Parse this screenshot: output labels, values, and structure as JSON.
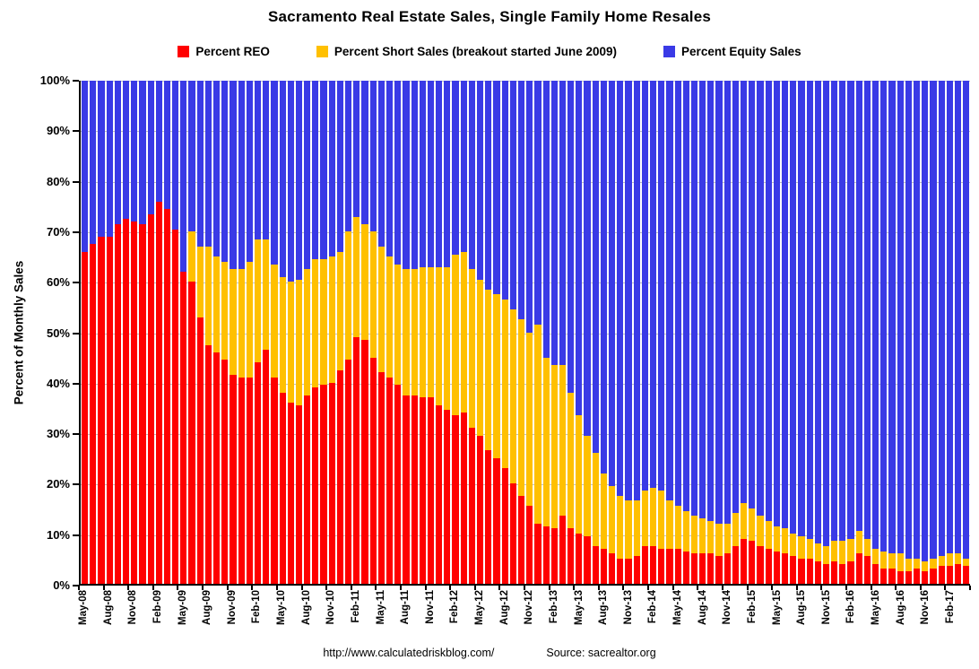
{
  "title": "Sacramento Real Estate Sales, Single Family Home Resales",
  "legend": [
    {
      "label": "Percent REO",
      "color": "#FF0000"
    },
    {
      "label": "Percent Short Sales (breakout started June 2009)",
      "color": "#FFC000"
    },
    {
      "label": "Percent Equity Sales",
      "color": "#3A3AE6"
    }
  ],
  "y_axis": {
    "title": "Percent of Monthly Sales",
    "ticks": [
      "0%",
      "10%",
      "20%",
      "30%",
      "40%",
      "50%",
      "60%",
      "70%",
      "80%",
      "90%",
      "100%"
    ]
  },
  "x_axis": {
    "label_every": 3
  },
  "footer": {
    "url": "http://www.calculatedriskblog.com/",
    "source": "Source: sacrealtor.org"
  },
  "colors": {
    "reo": "#FF0000",
    "short_sales": "#FFC000",
    "equity": "#3A3AE6",
    "gridline": "#C0C0C0"
  },
  "chart_data": {
    "type": "bar",
    "stacked": true,
    "percent_total": 100,
    "title": "Sacramento Real Estate Sales, Single Family Home Resales",
    "ylabel": "Percent of Monthly Sales",
    "ylim": [
      0,
      100
    ],
    "grid": true,
    "legend_position": "top",
    "categories": [
      "May-08",
      "Jun-08",
      "Jul-08",
      "Aug-08",
      "Sep-08",
      "Oct-08",
      "Nov-08",
      "Dec-08",
      "Jan-09",
      "Feb-09",
      "Mar-09",
      "Apr-09",
      "May-09",
      "Jun-09",
      "Jul-09",
      "Aug-09",
      "Sep-09",
      "Oct-09",
      "Nov-09",
      "Dec-09",
      "Jan-10",
      "Feb-10",
      "Mar-10",
      "Apr-10",
      "May-10",
      "Jun-10",
      "Jul-10",
      "Aug-10",
      "Sep-10",
      "Oct-10",
      "Nov-10",
      "Dec-10",
      "Jan-11",
      "Feb-11",
      "Mar-11",
      "Apr-11",
      "May-11",
      "Jun-11",
      "Jul-11",
      "Aug-11",
      "Sep-11",
      "Oct-11",
      "Nov-11",
      "Dec-11",
      "Jan-12",
      "Feb-12",
      "Mar-12",
      "Apr-12",
      "May-12",
      "Jun-12",
      "Jul-12",
      "Aug-12",
      "Sep-12",
      "Oct-12",
      "Nov-12",
      "Dec-12",
      "Jan-13",
      "Feb-13",
      "Mar-13",
      "Apr-13",
      "May-13",
      "Jun-13",
      "Jul-13",
      "Aug-13",
      "Sep-13",
      "Oct-13",
      "Nov-13",
      "Dec-13",
      "Jan-14",
      "Feb-14",
      "Mar-14",
      "Apr-14",
      "May-14",
      "Jun-14",
      "Jul-14",
      "Aug-14",
      "Sep-14",
      "Oct-14",
      "Nov-14",
      "Dec-14",
      "Jan-15",
      "Feb-15",
      "Mar-15",
      "Apr-15",
      "May-15",
      "Jun-15",
      "Jul-15",
      "Aug-15",
      "Sep-15",
      "Oct-15",
      "Nov-15",
      "Dec-15",
      "Jan-16",
      "Feb-16",
      "Mar-16",
      "Apr-16",
      "May-16",
      "Jun-16",
      "Jul-16",
      "Aug-16",
      "Sep-16",
      "Oct-16",
      "Nov-16",
      "Dec-16",
      "Jan-17",
      "Feb-17",
      "Mar-17",
      "Apr-17"
    ],
    "series": [
      {
        "name": "Percent REO",
        "color": "#FF0000",
        "values": [
          66,
          67.5,
          69,
          69,
          71.5,
          72.5,
          72,
          71.5,
          73.5,
          76,
          74.5,
          70.5,
          62,
          60,
          53,
          47.5,
          46,
          44.5,
          41.5,
          41,
          41,
          44,
          46.5,
          41,
          38,
          36,
          35.5,
          37.5,
          39,
          39.5,
          40,
          42.5,
          44.5,
          49,
          48.5,
          45,
          42,
          41,
          39.5,
          37.5,
          37.5,
          37,
          37,
          35.5,
          34.5,
          33.5,
          34,
          31,
          29.5,
          26.5,
          25,
          23,
          20,
          17.5,
          15.5,
          12,
          11.5,
          11,
          13.5,
          11,
          10,
          9.5,
          7.5,
          7,
          6,
          5,
          5,
          5.5,
          7.5,
          7.5,
          7,
          7,
          7,
          6.5,
          6,
          6,
          6,
          5.5,
          6,
          7.5,
          9,
          8.5,
          7.5,
          7,
          6.5,
          6,
          5.5,
          5,
          5,
          4.5,
          4,
          4.5,
          4,
          4.5,
          6,
          5.5,
          4,
          3,
          3,
          2.5,
          2.5,
          3,
          2.5,
          3,
          3.5,
          3.5,
          4,
          3.5
        ]
      },
      {
        "name": "Percent Short Sales (breakout started June 2009)",
        "color": "#FFC000",
        "values": [
          0,
          0,
          0,
          0,
          0,
          0,
          0,
          0,
          0,
          0,
          0,
          0,
          0,
          10,
          14,
          19.5,
          19,
          19.5,
          21,
          21.5,
          23,
          24.5,
          22,
          22.5,
          23,
          24,
          25,
          25,
          25.5,
          25,
          25,
          23.5,
          25.5,
          24,
          23,
          25,
          25,
          24,
          24,
          25,
          25,
          26,
          26,
          27.5,
          28.5,
          32,
          32,
          31.5,
          31,
          32,
          32.5,
          33.5,
          34.5,
          35,
          34.5,
          39.5,
          33.5,
          32.5,
          30,
          27,
          23.5,
          20,
          18.5,
          15,
          13.5,
          12.5,
          11.5,
          11,
          11,
          11.5,
          11.5,
          9.5,
          8.5,
          8,
          7.5,
          7,
          6.5,
          6.5,
          6,
          6.5,
          7,
          6.5,
          6,
          5.5,
          5,
          5,
          4.5,
          4.5,
          4,
          3.5,
          3.5,
          4,
          4.5,
          4.5,
          4.5,
          3.5,
          3,
          3.5,
          3,
          3.5,
          2.5,
          2,
          2,
          2,
          2,
          2.5,
          2,
          1.5
        ]
      },
      {
        "name": "Percent Equity Sales",
        "color": "#3A3AE6",
        "values": [
          34,
          32.5,
          31,
          31,
          28.5,
          27.5,
          28,
          28.5,
          26.5,
          24,
          25.5,
          29.5,
          38,
          30,
          33,
          33,
          35,
          36,
          37.5,
          37.5,
          36,
          31.5,
          31.5,
          36.5,
          39,
          40,
          39.5,
          37.5,
          35.5,
          35.5,
          35,
          34,
          30,
          27,
          28.5,
          30,
          33,
          35,
          36.5,
          37.5,
          37.5,
          37,
          37,
          37,
          37,
          34.5,
          34,
          37.5,
          39.5,
          41.5,
          42.5,
          43.5,
          45.5,
          47.5,
          50,
          48.5,
          55,
          56.5,
          56.5,
          62,
          66.5,
          70.5,
          74,
          78,
          80.5,
          82.5,
          83.5,
          83.5,
          81.5,
          81,
          81.5,
          83.5,
          84.5,
          85.5,
          86.5,
          87,
          87.5,
          88,
          88,
          86,
          84,
          85,
          86.5,
          87.5,
          88.5,
          89,
          90,
          90.5,
          91,
          92,
          92.5,
          91.5,
          91.5,
          91,
          89.5,
          91,
          93,
          93.5,
          94,
          94,
          95,
          95,
          95.5,
          95,
          94.5,
          94,
          94,
          95
        ]
      }
    ]
  }
}
